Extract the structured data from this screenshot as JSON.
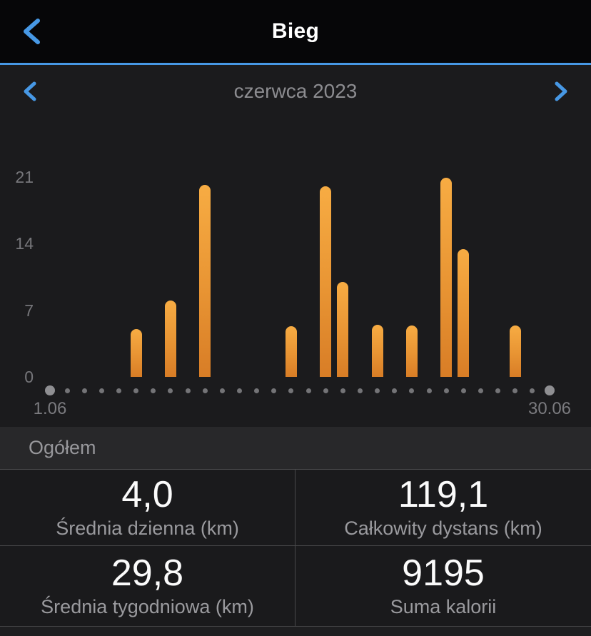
{
  "colors": {
    "accent_blue": "#4798e5",
    "bar_orange_top": "#f7ac43",
    "bar_orange_bottom": "#d87d26",
    "background_dark": "#1b1b1d",
    "header_black": "#060608"
  },
  "header": {
    "title": "Bieg"
  },
  "month_nav": {
    "label": "czerwca 2023"
  },
  "chart_data": {
    "type": "bar",
    "title": "czerwca 2023",
    "xlabel": "",
    "ylabel": "",
    "unit": "km",
    "ylim": [
      0,
      22
    ],
    "y_ticks": [
      0,
      7,
      14,
      21
    ],
    "x_range": {
      "start_day": 1,
      "end_day": 30
    },
    "x_axis_labels": [
      "1.06",
      "30.06"
    ],
    "grid": false,
    "legend": false,
    "bars": [
      {
        "day": 6,
        "value": 5.0
      },
      {
        "day": 8,
        "value": 8.0
      },
      {
        "day": 10,
        "value": 20.2
      },
      {
        "day": 15,
        "value": 5.3
      },
      {
        "day": 17,
        "value": 20.0
      },
      {
        "day": 18,
        "value": 10.0
      },
      {
        "day": 20,
        "value": 5.5
      },
      {
        "day": 22,
        "value": 5.4
      },
      {
        "day": 24,
        "value": 20.9
      },
      {
        "day": 25,
        "value": 13.4
      },
      {
        "day": 28,
        "value": 5.4
      }
    ]
  },
  "summary": {
    "section_title": "Ogółem",
    "stats": [
      {
        "value": "4,0",
        "label": "Średnia dzienna (km)"
      },
      {
        "value": "119,1",
        "label": "Całkowity dystans (km)"
      },
      {
        "value": "29,8",
        "label": "Średnia tygodniowa (km)"
      },
      {
        "value": "9195",
        "label": "Suma kalorii"
      }
    ]
  }
}
